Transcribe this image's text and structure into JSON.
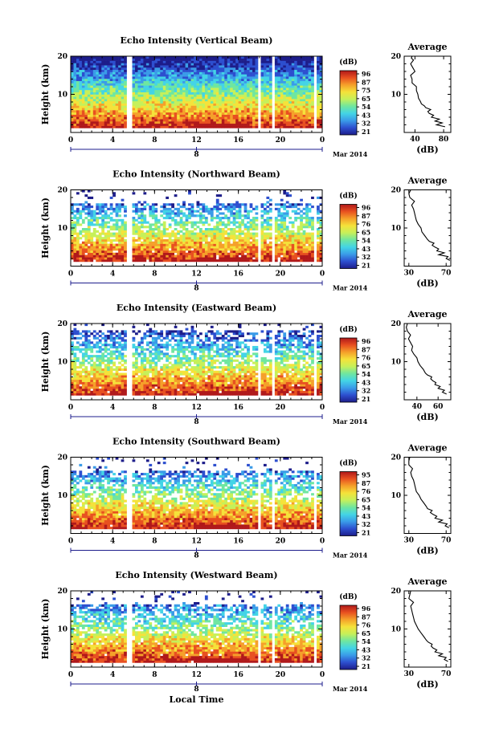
{
  "figure": {
    "x_axis_label": "Local Time",
    "date_label": "Mar 2014",
    "date_tick": "8",
    "height_axis_label": "Height (km)",
    "average_title": "Average",
    "average_unit": "(dB)",
    "colorbar_unit": "(dB)"
  },
  "colors": {
    "colormap": [
      "#1d1d8a",
      "#2d4fcf",
      "#3a9be8",
      "#43d4e6",
      "#6fe6a0",
      "#c6f05a",
      "#f5e23a",
      "#f5a02a",
      "#e85020",
      "#b0181a"
    ],
    "frame": "#000000",
    "time_axis": "#1e1e8c",
    "average_line": "#000000"
  },
  "chart_data": [
    {
      "type": "heatmap",
      "title": "Echo Intensity (Vertical Beam)",
      "xlabel": "",
      "ylabel": "Height (km)",
      "xlim": [
        0,
        24
      ],
      "ylim": [
        0,
        20
      ],
      "xticks": [
        "0",
        "4",
        "8",
        "12",
        "16",
        "20",
        "0"
      ],
      "yticks": [
        "10",
        "20"
      ],
      "colorbar": {
        "label": "(dB)",
        "ticks": [
          "96",
          "87",
          "75",
          "65",
          "54",
          "43",
          "32",
          "21"
        ]
      },
      "data_gaps_hours": [
        5.6,
        18.0,
        19.3,
        23.4
      ],
      "description_values": {
        "top_echo_km": 19.5
      },
      "average": {
        "title": "Average",
        "xlabel": "(dB)",
        "xticks": [
          "40",
          "80"
        ],
        "xlim": [
          25,
          90
        ],
        "yticks": [
          "10",
          "20"
        ],
        "ylim": [
          0,
          20
        ],
        "height_km": [
          1.5,
          2,
          2.5,
          3,
          3.5,
          4,
          4.5,
          5,
          5.5,
          6,
          6.5,
          7,
          7.5,
          8,
          9,
          10,
          11,
          12,
          13,
          14,
          15,
          16,
          17,
          18,
          19,
          19.5,
          20
        ],
        "db": [
          82,
          70,
          78,
          68,
          74,
          63,
          66,
          60,
          58,
          62,
          55,
          53,
          49,
          48,
          45,
          44,
          42,
          42,
          36,
          36,
          34,
          40,
          37,
          34,
          38,
          35,
          36
        ]
      }
    },
    {
      "type": "heatmap",
      "title": "Echo Intensity (Northward Beam)",
      "xlabel": "",
      "ylabel": "Height (km)",
      "xlim": [
        0,
        24
      ],
      "ylim": [
        0,
        20
      ],
      "xticks": [
        "0",
        "4",
        "8",
        "12",
        "16",
        "20",
        "0"
      ],
      "yticks": [
        "10",
        "20"
      ],
      "colorbar": {
        "label": "(dB)",
        "ticks": [
          "96",
          "87",
          "76",
          "65",
          "54",
          "43",
          "32",
          "21"
        ]
      },
      "data_gaps_hours": [
        5.6,
        18.0,
        19.3,
        23.4
      ],
      "description_values": {
        "top_echo_km": 16.5
      },
      "average": {
        "title": "Average",
        "xlabel": "(dB)",
        "xticks": [
          "30",
          "70"
        ],
        "xlim": [
          25,
          75
        ],
        "yticks": [
          "10",
          "20"
        ],
        "ylim": [
          0,
          20
        ],
        "height_km": [
          1.5,
          2,
          2.5,
          3,
          3.5,
          4,
          4.5,
          5,
          5.5,
          6,
          6.5,
          7,
          8,
          9,
          10,
          11,
          12,
          13,
          14,
          15,
          16,
          17,
          18,
          19,
          20
        ],
        "db": [
          74,
          70,
          72,
          62,
          68,
          60,
          62,
          58,
          55,
          57,
          52,
          50,
          47,
          44,
          43,
          40,
          38,
          37,
          36,
          35,
          33,
          36,
          31,
          30,
          32
        ]
      }
    },
    {
      "type": "heatmap",
      "title": "Echo Intensity (Eastward Beam)",
      "xlabel": "",
      "ylabel": "Height (km)",
      "xlim": [
        0,
        24
      ],
      "ylim": [
        0,
        20
      ],
      "xticks": [
        "0",
        "4",
        "8",
        "12",
        "16",
        "20",
        "0"
      ],
      "yticks": [
        "10",
        "20"
      ],
      "colorbar": {
        "label": "(dB)",
        "ticks": [
          "96",
          "87",
          "76",
          "65",
          "54",
          "43",
          "32",
          "21"
        ]
      },
      "data_gaps_hours": [
        5.6,
        18.0,
        19.3,
        23.4
      ],
      "description_values": {
        "top_echo_km": 18.5
      },
      "average": {
        "title": "Average",
        "xlabel": "(dB)",
        "xticks": [
          "40",
          "60"
        ],
        "xlim": [
          28,
          72
        ],
        "yticks": [
          "10",
          "20"
        ],
        "ylim": [
          0,
          20
        ],
        "height_km": [
          1.5,
          2,
          2.5,
          3,
          3.5,
          4,
          4.5,
          5,
          5.5,
          6,
          6.5,
          7,
          8,
          9,
          10,
          11,
          12,
          13,
          14,
          15,
          16,
          17,
          18,
          19,
          20
        ],
        "db": [
          68,
          64,
          66,
          60,
          62,
          57,
          58,
          55,
          53,
          54,
          50,
          48,
          46,
          43,
          41,
          40,
          37,
          35,
          36,
          34,
          32,
          34,
          31,
          30,
          31
        ]
      }
    },
    {
      "type": "heatmap",
      "title": "Echo Intensity (Southward Beam)",
      "xlabel": "",
      "ylabel": "Height (km)",
      "xlim": [
        0,
        24
      ],
      "ylim": [
        0,
        20
      ],
      "xticks": [
        "0",
        "4",
        "8",
        "12",
        "16",
        "20",
        "0"
      ],
      "yticks": [
        "10",
        "20"
      ],
      "colorbar": {
        "label": "(dB)",
        "ticks": [
          "95",
          "87",
          "76",
          "65",
          "54",
          "43",
          "32",
          "21"
        ]
      },
      "data_gaps_hours": [
        5.6,
        18.0,
        19.3,
        23.4
      ],
      "description_values": {
        "top_echo_km": 16.5
      },
      "average": {
        "title": "Average",
        "xlabel": "(dB)",
        "xticks": [
          "30",
          "70"
        ],
        "xlim": [
          25,
          75
        ],
        "yticks": [
          "10",
          "20"
        ],
        "ylim": [
          0,
          20
        ],
        "height_km": [
          1.5,
          2,
          2.5,
          3,
          3.5,
          4,
          4.5,
          5,
          5.5,
          6,
          6.5,
          7,
          8,
          9,
          10,
          11,
          12,
          13,
          14,
          15,
          16,
          17,
          18,
          19,
          20
        ],
        "db": [
          73,
          69,
          71,
          62,
          66,
          58,
          60,
          56,
          53,
          55,
          50,
          49,
          46,
          43,
          41,
          38,
          37,
          36,
          35,
          33,
          32,
          34,
          30,
          30,
          31
        ]
      }
    },
    {
      "type": "heatmap",
      "title": "Echo Intensity (Westward Beam)",
      "xlabel": "Local Time",
      "ylabel": "Height (km)",
      "xlim": [
        0,
        24
      ],
      "ylim": [
        0,
        20
      ],
      "xticks": [
        "0",
        "4",
        "8",
        "12",
        "16",
        "20",
        "0"
      ],
      "yticks": [
        "10",
        "20"
      ],
      "colorbar": {
        "label": "(dB)",
        "ticks": [
          "96",
          "87",
          "76",
          "65",
          "54",
          "43",
          "32",
          "21"
        ]
      },
      "data_gaps_hours": [
        5.6,
        18.0,
        19.3,
        23.4
      ],
      "description_values": {
        "top_echo_km": 16.5
      },
      "average": {
        "title": "Average",
        "xlabel": "(dB)",
        "xticks": [
          "30",
          "70"
        ],
        "xlim": [
          25,
          75
        ],
        "yticks": [
          "10",
          "20"
        ],
        "ylim": [
          0,
          20
        ],
        "height_km": [
          1.5,
          2,
          2.5,
          3,
          3.5,
          4,
          4.5,
          5,
          5.5,
          6,
          6.5,
          7,
          8,
          9,
          10,
          11,
          12,
          13,
          14,
          15,
          16,
          17,
          18,
          19,
          20
        ],
        "db": [
          72,
          68,
          70,
          62,
          66,
          58,
          60,
          56,
          54,
          55,
          51,
          49,
          46,
          43,
          40,
          38,
          36,
          35,
          34,
          33,
          32,
          35,
          30,
          31,
          32
        ]
      }
    }
  ]
}
